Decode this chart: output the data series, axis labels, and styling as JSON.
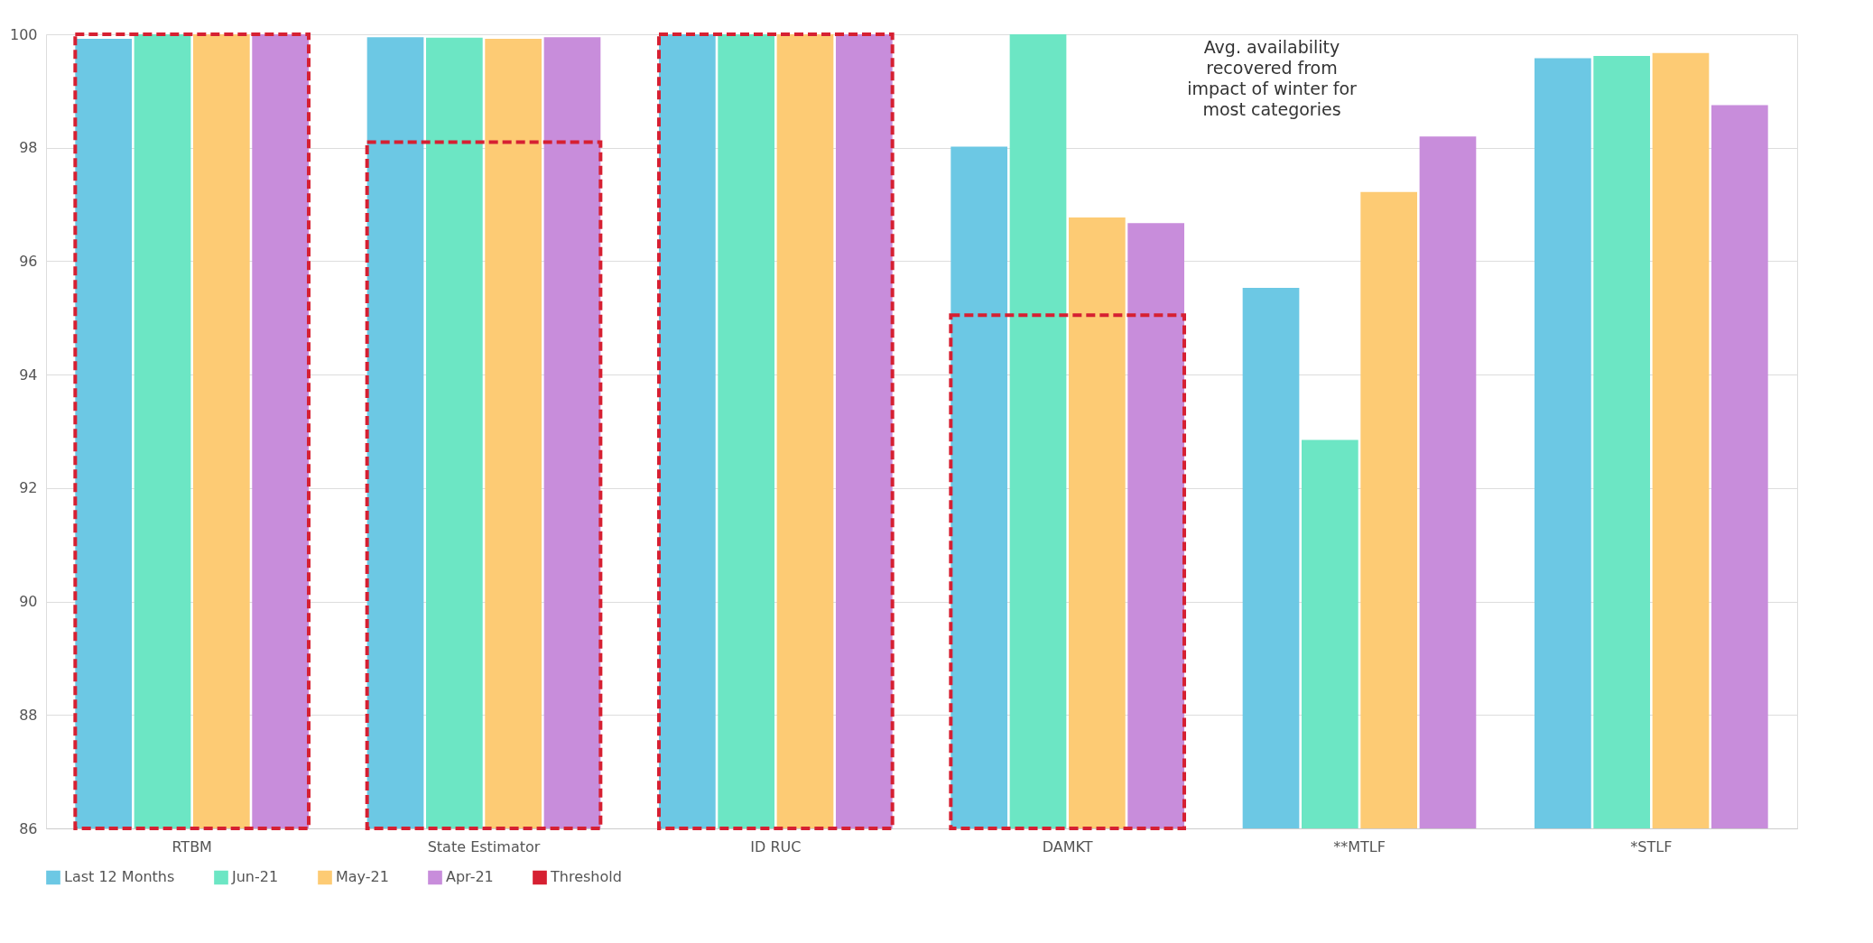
{
  "chart_data": {
    "type": "bar",
    "categories": [
      "RTBM",
      "State Estimator",
      "ID RUC",
      "DAMKT",
      "**MTLF",
      "*STLF"
    ],
    "series": [
      {
        "name": "Last 12 Months",
        "color": "#6cc8e4",
        "values": [
          99.92,
          99.95,
          100,
          98.02,
          95.53,
          99.58
        ]
      },
      {
        "name": "Jun-21",
        "color": "#6ce6c4",
        "values": [
          100,
          99.94,
          100,
          100,
          92.85,
          99.62
        ]
      },
      {
        "name": "May-21",
        "color": "#fdcb74",
        "values": [
          100,
          99.92,
          100,
          96.77,
          97.22,
          99.67
        ]
      },
      {
        "name": "Apr-21",
        "color": "#c88ddb",
        "values": [
          100,
          99.95,
          100,
          96.67,
          98.2,
          98.75
        ]
      },
      {
        "name": "Threshold",
        "type": "bar",
        "line_style": "dashed",
        "color": "#d62032",
        "values": [
          100,
          98.1,
          100,
          95.05,
          null,
          null
        ]
      }
    ],
    "ylim": [
      86,
      100
    ],
    "yticks": [
      86,
      88,
      90,
      92,
      94,
      96,
      98,
      100
    ],
    "grid": "y",
    "legend": "bottom",
    "annotations": [
      "Avg. availability\nrecovered from\nimpact of winter for\nmost categories"
    ]
  }
}
